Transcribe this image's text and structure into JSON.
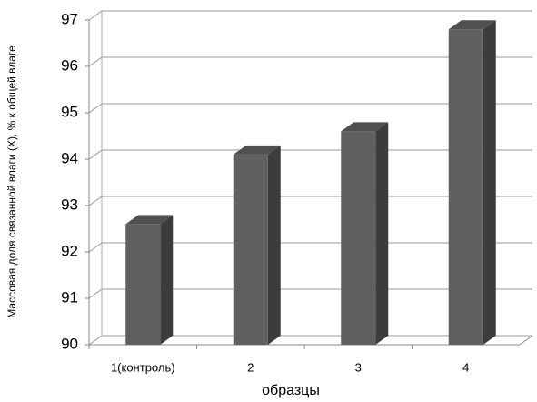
{
  "chart_data": {
    "type": "bar3d",
    "y_label": "Массовая доля связанной влаги (X), % к общей влаге",
    "x_label": "образцы",
    "categories": [
      "1(контроль)",
      "2",
      "3",
      "4"
    ],
    "values": [
      92.6,
      94.1,
      94.6,
      96.8
    ],
    "color": "#606060",
    "ylim": [
      90,
      97
    ],
    "yticks": [
      90,
      91,
      92,
      93,
      94,
      95,
      96,
      97
    ],
    "grid": true
  }
}
